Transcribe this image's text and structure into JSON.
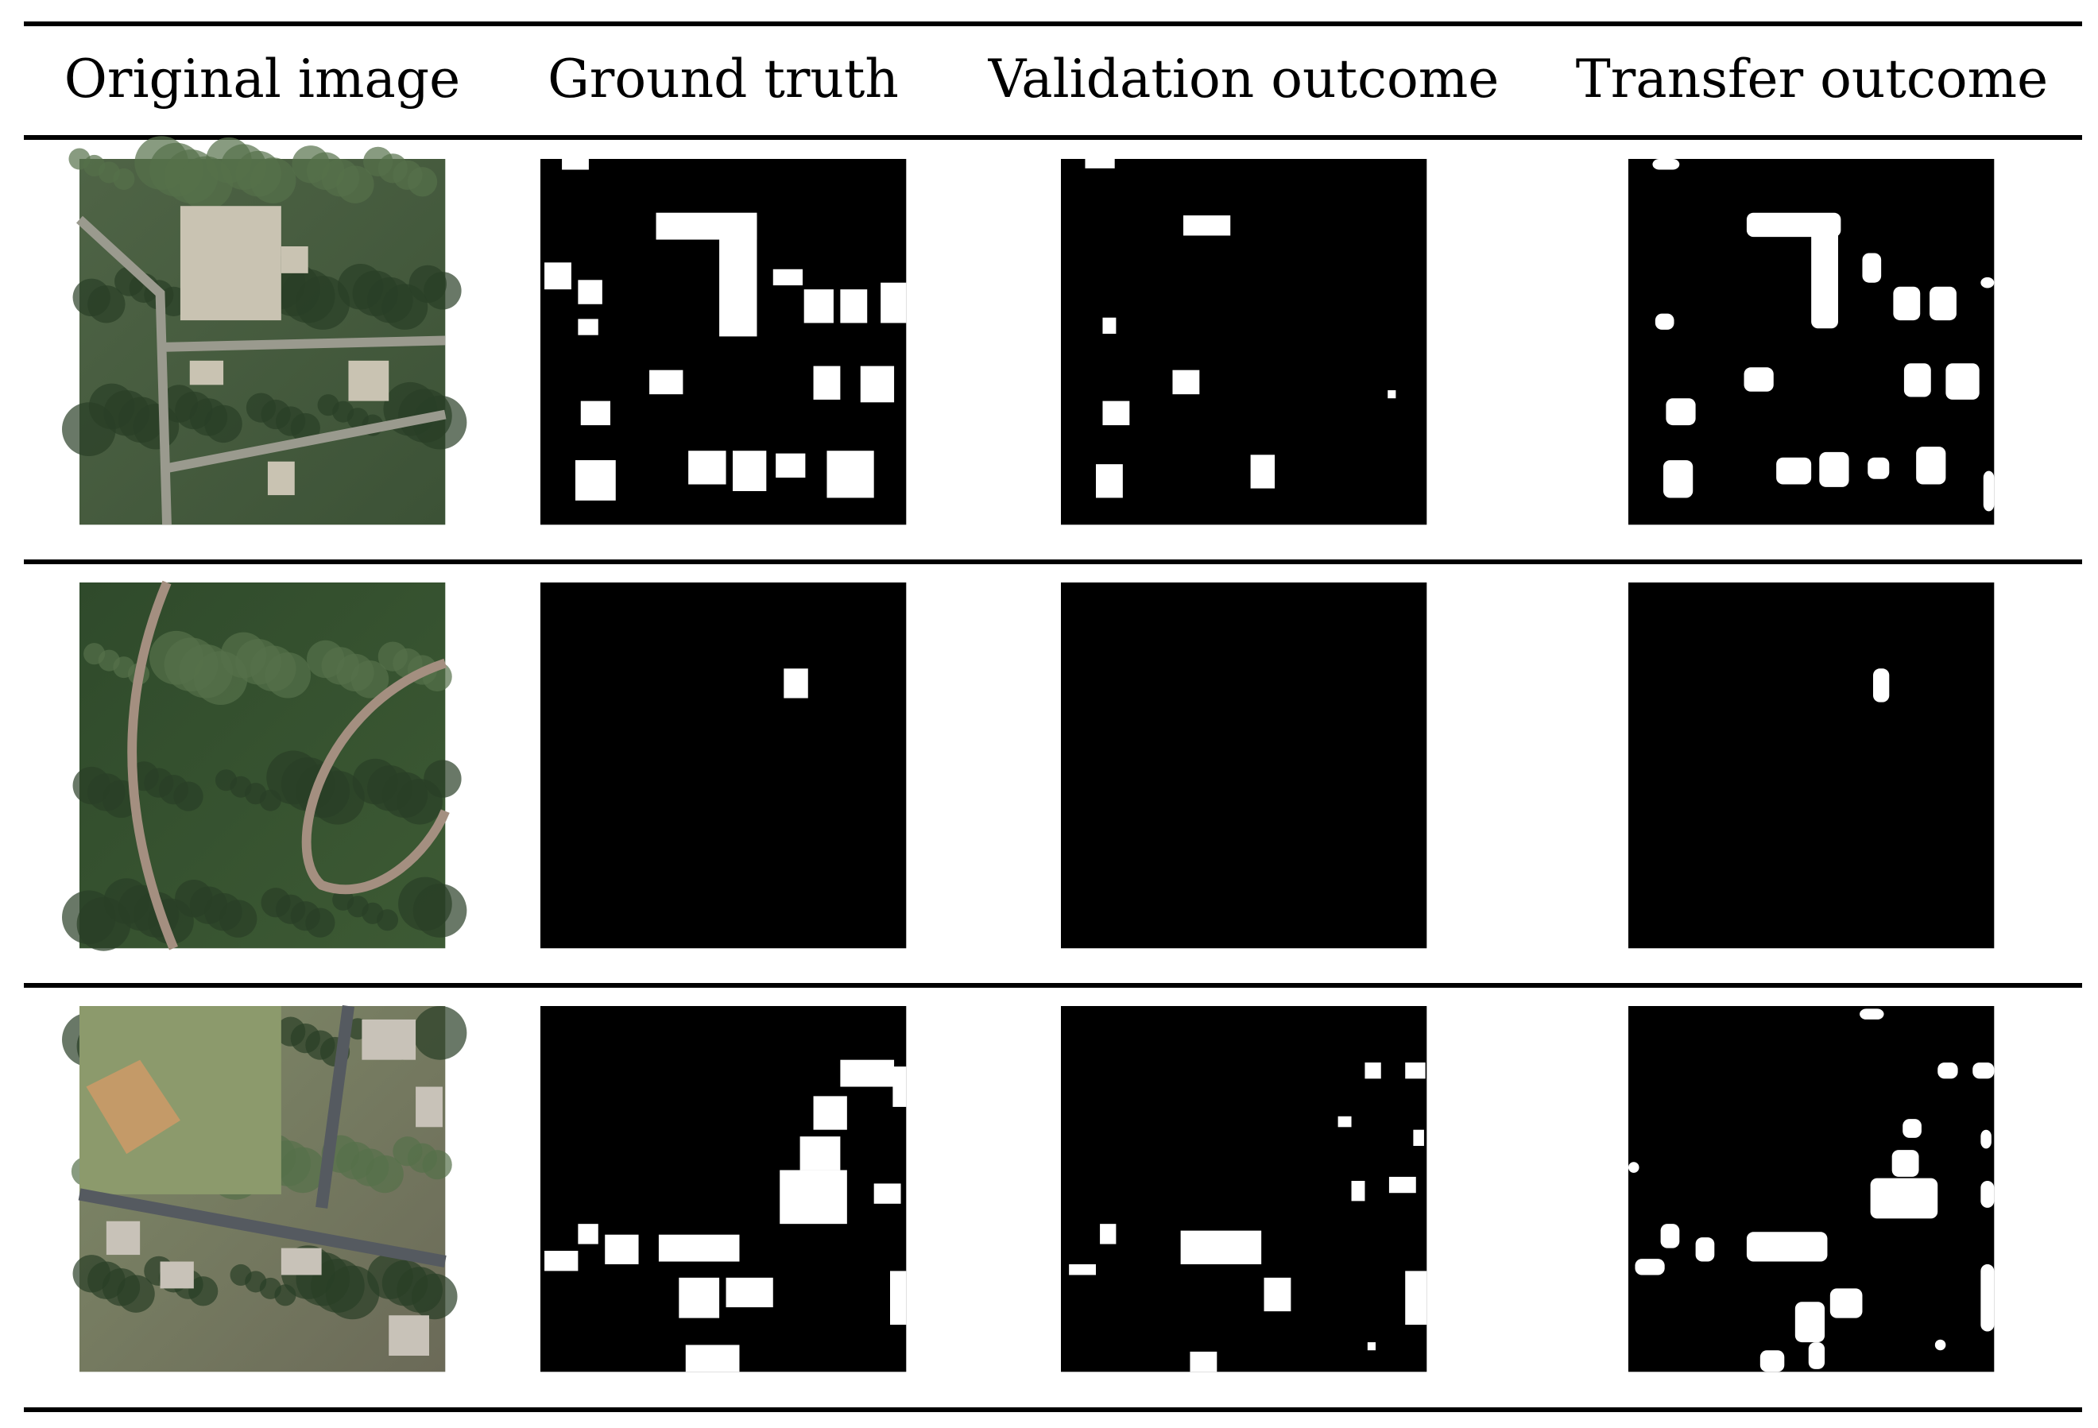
{
  "header": {
    "columns": [
      "Original image",
      "Ground truth",
      "Validation outcome",
      "Transfer outcome"
    ]
  }
}
